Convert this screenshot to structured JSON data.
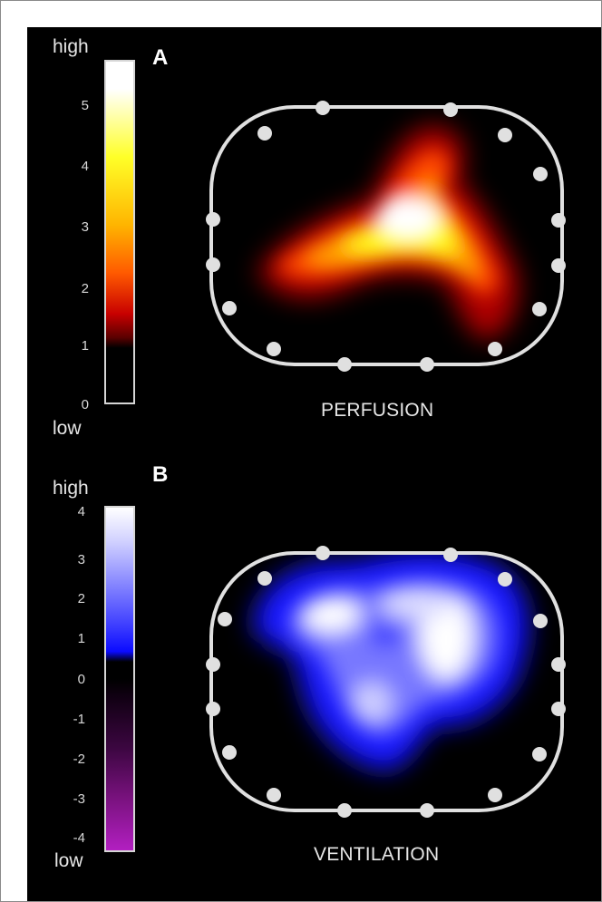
{
  "panels": [
    {
      "letter": "A",
      "caption": "PERFUSION",
      "scale_high": "high",
      "scale_low": "low",
      "ticks": [
        "5",
        "4",
        "3",
        "2",
        "1",
        "0"
      ]
    },
    {
      "letter": "B",
      "caption": "VENTILATION",
      "scale_high": "high",
      "scale_low": "low",
      "ticks": [
        "4",
        "3",
        "2",
        "1",
        "0",
        "-1",
        "-2",
        "-3",
        "-4"
      ]
    }
  ],
  "colors": {
    "perfusion_scale": [
      "#000000",
      "#5a0000",
      "#c80000",
      "#ff5a00",
      "#ffb400",
      "#ffff28",
      "#ffffff"
    ],
    "ventilation_scale": [
      "#9a1aa8",
      "#3b0640",
      "#000000",
      "#0b0bff",
      "#7070ff",
      "#ffffff"
    ]
  }
}
